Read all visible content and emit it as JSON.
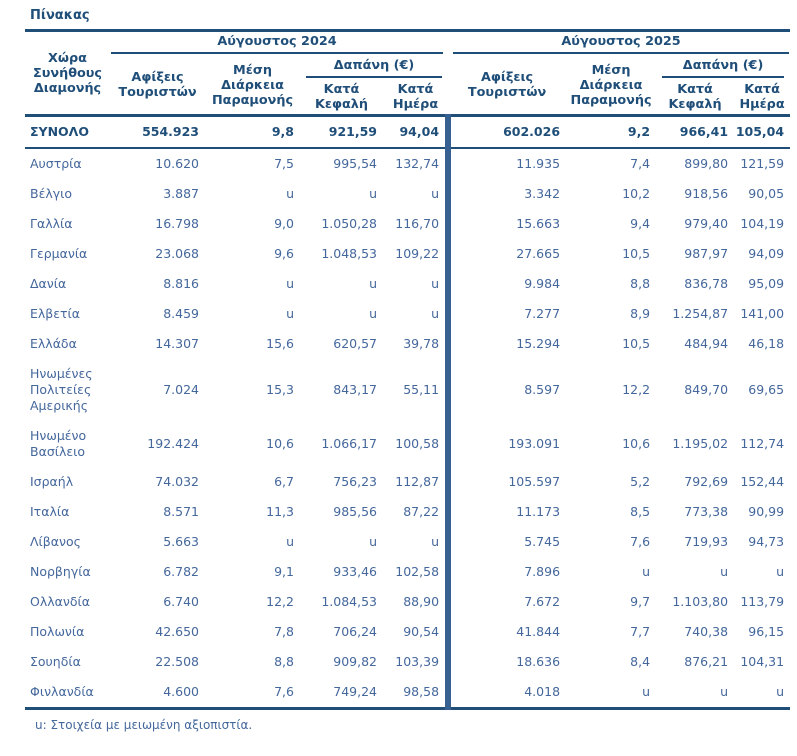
{
  "title": "Πίνακας",
  "colors": {
    "header_navy": "#1F4E79",
    "data_blue": "#44679C",
    "divider_blue": "#376092",
    "background": "#ffffff"
  },
  "table": {
    "country_header": "Χώρα Συνήθους Διαμονής",
    "groups": [
      {
        "label": "Αύγουστος 2024"
      },
      {
        "label": "Αύγουστος 2025"
      }
    ],
    "sub_headers": {
      "arrivals": "Αφίξεις Τουριστών",
      "stay": "Μέση Διάρκεια Παραμονής",
      "expenditure": "Δαπάνη (€)",
      "per_capita": "Κατά Κεφαλή",
      "per_day": "Κατά Ημέρα"
    },
    "total_row": {
      "name": "ΣΥΝΟΛΟ",
      "values": [
        "554.923",
        "9,8",
        "921,59",
        "94,04",
        "602.026",
        "9,2",
        "966,41",
        "105,04"
      ]
    },
    "rows": [
      {
        "name": "Αυστρία",
        "values": [
          "10.620",
          "7,5",
          "995,54",
          "132,74",
          "11.935",
          "7,4",
          "899,80",
          "121,59"
        ]
      },
      {
        "name": "Βέλγιο",
        "values": [
          "3.887",
          "u",
          "u",
          "u",
          "3.342",
          "10,2",
          "918,56",
          "90,05"
        ]
      },
      {
        "name": "Γαλλία",
        "values": [
          "16.798",
          "9,0",
          "1.050,28",
          "116,70",
          "15.663",
          "9,4",
          "979,40",
          "104,19"
        ]
      },
      {
        "name": "Γερμανία",
        "values": [
          "23.068",
          "9,6",
          "1.048,53",
          "109,22",
          "27.665",
          "10,5",
          "987,97",
          "94,09"
        ]
      },
      {
        "name": "Δανία",
        "values": [
          "8.816",
          "u",
          "u",
          "u",
          "9.984",
          "8,8",
          "836,78",
          "95,09"
        ]
      },
      {
        "name": "Ελβετία",
        "values": [
          "8.459",
          "u",
          "u",
          "u",
          "7.277",
          "8,9",
          "1.254,87",
          "141,00"
        ]
      },
      {
        "name": "Ελλάδα",
        "values": [
          "14.307",
          "15,6",
          "620,57",
          "39,78",
          "15.294",
          "10,5",
          "484,94",
          "46,18"
        ]
      },
      {
        "name": "Ηνωμένες Πολιτείες Αμερικής",
        "values": [
          "7.024",
          "15,3",
          "843,17",
          "55,11",
          "8.597",
          "12,2",
          "849,70",
          "69,65"
        ]
      },
      {
        "name": "Ηνωμένο Βασίλειο",
        "values": [
          "192.424",
          "10,6",
          "1.066,17",
          "100,58",
          "193.091",
          "10,6",
          "1.195,02",
          "112,74"
        ]
      },
      {
        "name": "Ισραήλ",
        "values": [
          "74.032",
          "6,7",
          "756,23",
          "112,87",
          "105.597",
          "5,2",
          "792,69",
          "152,44"
        ]
      },
      {
        "name": "Ιταλία",
        "values": [
          "8.571",
          "11,3",
          "985,56",
          "87,22",
          "11.173",
          "8,5",
          "773,38",
          "90,99"
        ]
      },
      {
        "name": "Λίβανος",
        "values": [
          "5.663",
          "u",
          "u",
          "u",
          "5.745",
          "7,6",
          "719,93",
          "94,73"
        ]
      },
      {
        "name": "Νορβηγία",
        "values": [
          "6.782",
          "9,1",
          "933,46",
          "102,58",
          "7.896",
          "u",
          "u",
          "u"
        ]
      },
      {
        "name": "Ολλανδία",
        "values": [
          "6.740",
          "12,2",
          "1.084,53",
          "88,90",
          "7.672",
          "9,7",
          "1.103,80",
          "113,79"
        ]
      },
      {
        "name": "Πολωνία",
        "values": [
          "42.650",
          "7,8",
          "706,24",
          "90,54",
          "41.844",
          "7,7",
          "740,38",
          "96,15"
        ]
      },
      {
        "name": "Σουηδία",
        "values": [
          "22.508",
          "8,8",
          "909,82",
          "103,39",
          "18.636",
          "8,4",
          "876,21",
          "104,31"
        ]
      },
      {
        "name": "Φινλανδία",
        "values": [
          "4.600",
          "7,6",
          "749,24",
          "98,58",
          "4.018",
          "u",
          "u",
          "u"
        ]
      }
    ],
    "footnote": "u:  Στοιχεία με μειωμένη αξιοπιστία."
  }
}
